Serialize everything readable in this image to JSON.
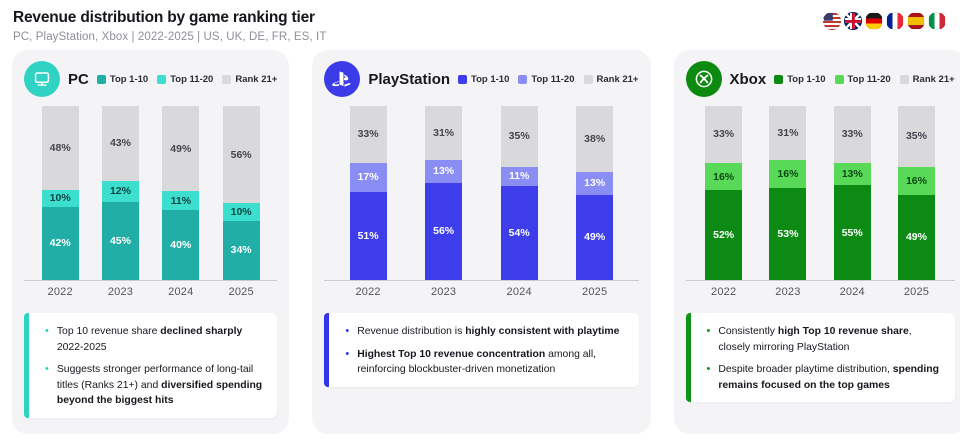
{
  "header": {
    "title": "Revenue distribution by game ranking tier",
    "subtitle": "PC, PlayStation, Xbox | 2022-2025 | US, UK, DE, FR, ES, IT",
    "flags": [
      {
        "icon": "flag-us-icon",
        "country": "US"
      },
      {
        "icon": "flag-uk-icon",
        "country": "UK"
      },
      {
        "icon": "flag-de-icon",
        "country": "DE"
      },
      {
        "icon": "flag-fr-icon",
        "country": "FR"
      },
      {
        "icon": "flag-es-icon",
        "country": "ES"
      },
      {
        "icon": "flag-it-icon",
        "country": "IT"
      }
    ]
  },
  "chart_data": [
    {
      "type": "bar",
      "stacked": true,
      "title": "PC",
      "categories": [
        "2022",
        "2023",
        "2024",
        "2025"
      ],
      "value_suffix": "%",
      "ylim": [
        0,
        100
      ],
      "grid": false,
      "legend_position": "top-right",
      "series": [
        {
          "name": "Top 1-10",
          "color": "#21AEA6",
          "label_color": "#FFFFFF",
          "values": [
            42,
            45,
            40,
            34
          ]
        },
        {
          "name": "Top 11-20",
          "color": "#3CDFCD",
          "label_color": "#0E4645",
          "values": [
            10,
            12,
            11,
            10
          ]
        },
        {
          "name": "Rank 21+",
          "color": "#D9D9DC",
          "label_color": "#45454E",
          "values": [
            48,
            43,
            49,
            56
          ]
        }
      ]
    },
    {
      "type": "bar",
      "stacked": true,
      "title": "PlayStation",
      "categories": [
        "2022",
        "2023",
        "2024",
        "2025"
      ],
      "value_suffix": "%",
      "ylim": [
        0,
        100
      ],
      "grid": false,
      "legend_position": "top-right",
      "series": [
        {
          "name": "Top 1-10",
          "color": "#3D3DEB",
          "label_color": "#FFFFFF",
          "values": [
            51,
            56,
            54,
            49
          ]
        },
        {
          "name": "Top 11-20",
          "color": "#8A8DF3",
          "label_color": "#FFFFFF",
          "values": [
            17,
            13,
            11,
            13
          ]
        },
        {
          "name": "Rank 21+",
          "color": "#D9D9DC",
          "label_color": "#45454E",
          "values": [
            33,
            31,
            35,
            38
          ]
        }
      ]
    },
    {
      "type": "bar",
      "stacked": true,
      "title": "Xbox",
      "categories": [
        "2022",
        "2023",
        "2024",
        "2025"
      ],
      "value_suffix": "%",
      "ylim": [
        0,
        100
      ],
      "grid": false,
      "legend_position": "top-right",
      "series": [
        {
          "name": "Top 1-10",
          "color": "#0C8A13",
          "label_color": "#FFFFFF",
          "values": [
            52,
            53,
            55,
            49
          ]
        },
        {
          "name": "Top 11-20",
          "color": "#58D957",
          "label_color": "#0A4A12",
          "values": [
            16,
            16,
            13,
            16
          ]
        },
        {
          "name": "Rank 21+",
          "color": "#D9D9DC",
          "label_color": "#45454E",
          "values": [
            33,
            31,
            33,
            35
          ]
        }
      ]
    }
  ],
  "panels": [
    {
      "platform": "PC",
      "icon": "pc-monitor-icon",
      "icon_bg": "#30D2C3",
      "accent": "#2BD3C1",
      "insights": [
        {
          "segments": [
            {
              "text": "Top 10 revenue share ",
              "bold": false
            },
            {
              "text": "declined sharply",
              "bold": true
            },
            {
              "text": " 2022-2025",
              "bold": false
            }
          ]
        },
        {
          "segments": [
            {
              "text": "Suggests stronger performance of long-tail titles (Ranks 21+) and ",
              "bold": false
            },
            {
              "text": "diversified spending beyond the biggest hits",
              "bold": true
            }
          ]
        }
      ]
    },
    {
      "platform": "PlayStation",
      "icon": "playstation-icon",
      "icon_bg": "#3B3BE8",
      "accent": "#3434EC",
      "insights": [
        {
          "segments": [
            {
              "text": "Revenue distribution is ",
              "bold": false
            },
            {
              "text": "highly consistent with playtime",
              "bold": true
            }
          ]
        },
        {
          "segments": [
            {
              "text": "Highest Top 10 revenue concentration",
              "bold": true
            },
            {
              "text": " among all, reinforcing blockbuster-driven monetization",
              "bold": false
            }
          ]
        }
      ]
    },
    {
      "platform": "Xbox",
      "icon": "xbox-icon",
      "icon_bg": "#0C8A10",
      "accent": "#0D9414",
      "insights": [
        {
          "segments": [
            {
              "text": "Consistently ",
              "bold": false
            },
            {
              "text": "high Top 10 revenue share",
              "bold": true
            },
            {
              "text": ", closely mirroring PlayStation",
              "bold": false
            }
          ]
        },
        {
          "segments": [
            {
              "text": "Despite broader playtime distribution, ",
              "bold": false
            },
            {
              "text": "spending remains focused on the top games",
              "bold": true
            }
          ]
        }
      ]
    }
  ]
}
